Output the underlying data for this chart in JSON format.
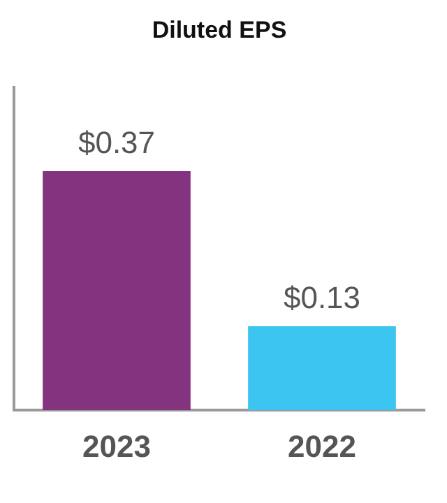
{
  "chart_data": {
    "type": "bar",
    "title": "Diluted EPS",
    "categories": [
      "2023",
      "2022"
    ],
    "values": [
      0.37,
      0.13
    ],
    "colors": [
      "#84337f",
      "#3cc5f0"
    ],
    "value_labels": [
      "$0.37",
      "$0.13"
    ],
    "ylim": [
      0,
      0.5
    ],
    "tick_labels": "x",
    "grid": false,
    "legend": false
  }
}
